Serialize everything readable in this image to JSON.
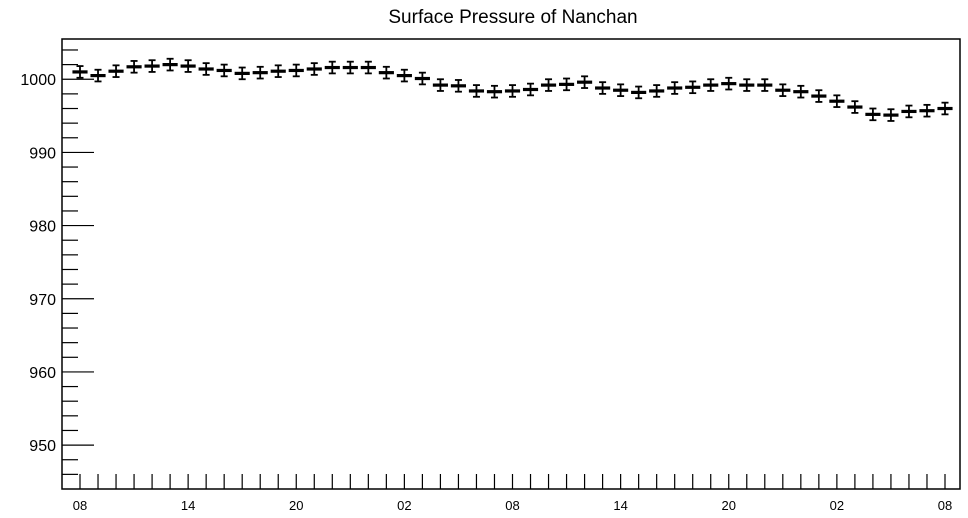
{
  "chart_data": {
    "type": "scatter",
    "title": "Surface Pressure of Nanchan",
    "xlabel": "",
    "ylabel": "",
    "ylim": [
      944,
      1005.5
    ],
    "y_ticks": [
      950,
      960,
      970,
      980,
      990,
      1000
    ],
    "x_tick_labels": [
      "08",
      "14",
      "20",
      "02",
      "08",
      "14",
      "20",
      "02",
      "08"
    ],
    "grid": false,
    "legend": "none",
    "error_bar": 0.8,
    "color": "#000000",
    "series": [
      {
        "values": [
          1001.0,
          1000.5,
          1001.1,
          1001.7,
          1001.8,
          1002.0,
          1001.8,
          1001.4,
          1001.2,
          1000.8,
          1000.9,
          1001.1,
          1001.2,
          1001.4,
          1001.6,
          1001.6,
          1001.6,
          1000.9,
          1000.5,
          1000.1,
          999.2,
          999.1,
          998.4,
          998.3,
          998.4,
          998.6,
          999.2,
          999.3,
          999.6,
          998.8,
          998.5,
          998.2,
          998.4,
          998.8,
          998.9,
          999.2,
          999.4,
          999.2,
          999.2,
          998.5,
          998.3,
          997.7,
          997.0,
          996.2,
          995.2,
          995.1,
          995.6,
          995.7,
          996.0
        ]
      }
    ]
  }
}
